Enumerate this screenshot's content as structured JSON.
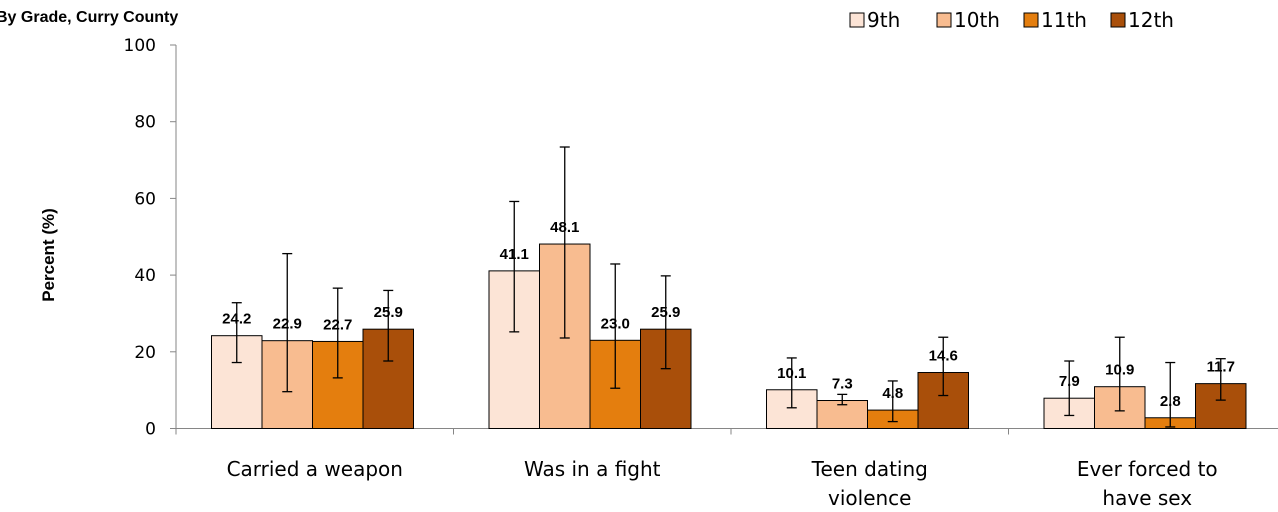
{
  "chart_data": {
    "type": "bar",
    "title": "By Grade, Curry County",
    "ylabel": "Percent (%)",
    "xlabel": "",
    "ylim": [
      0,
      100
    ],
    "yticks": [
      0,
      20,
      40,
      60,
      80,
      100
    ],
    "grid": false,
    "legend_position": "top-right",
    "categories": [
      [
        "Carried a weapon"
      ],
      [
        "Was in a fight"
      ],
      [
        "Teen dating",
        "violence"
      ],
      [
        "Ever forced to",
        "have sex"
      ]
    ],
    "series": [
      {
        "name": "9th",
        "color": "#fce4d6",
        "values": [
          24.2,
          41.1,
          10.1,
          7.9
        ],
        "labels": [
          "24.2",
          "41.1",
          "10.1",
          "7.9"
        ],
        "err_low": [
          17.2,
          25.2,
          5.4,
          3.4
        ],
        "err_high": [
          32.8,
          59.2,
          18.4,
          17.6
        ]
      },
      {
        "name": "10th",
        "color": "#f8bc90",
        "values": [
          22.9,
          48.1,
          7.3,
          10.9
        ],
        "labels": [
          "22.9",
          "48.1",
          "7.3",
          "10.9"
        ],
        "err_low": [
          9.6,
          23.6,
          6.2,
          4.6
        ],
        "err_high": [
          45.6,
          73.4,
          8.9,
          23.8
        ]
      },
      {
        "name": "11th",
        "color": "#e47e0e",
        "values": [
          22.7,
          23.0,
          4.8,
          2.8
        ],
        "labels": [
          "22.7",
          "23.0",
          "4.8",
          "2.8"
        ],
        "err_low": [
          13.2,
          10.5,
          1.8,
          0.4
        ],
        "err_high": [
          36.6,
          42.9,
          12.4,
          17.2
        ]
      },
      {
        "name": "12th",
        "color": "#a94f0a",
        "values": [
          25.9,
          25.9,
          14.6,
          11.7
        ],
        "labels": [
          "25.9",
          "25.9",
          "14.6",
          "11.7"
        ],
        "err_low": [
          17.6,
          15.6,
          8.6,
          7.4
        ],
        "err_high": [
          36.0,
          39.8,
          23.8,
          18.2
        ]
      }
    ]
  }
}
